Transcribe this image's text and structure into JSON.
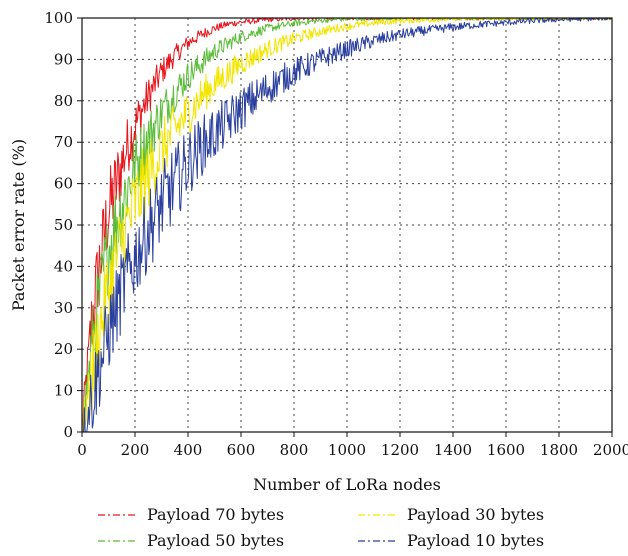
{
  "chart_data": {
    "type": "line",
    "title": "",
    "xlabel": "Number of LoRa nodes",
    "ylabel": "Packet error rate (%)",
    "xlim": [
      0,
      2000
    ],
    "ylim": [
      0,
      100
    ],
    "xticks": [
      0,
      200,
      400,
      600,
      800,
      1000,
      1200,
      1400,
      1600,
      1800,
      2000
    ],
    "yticks": [
      0,
      10,
      20,
      30,
      40,
      50,
      60,
      70,
      80,
      90,
      100
    ],
    "grid": true,
    "legend_position": "bottom",
    "series": [
      {
        "name": "Payload 70 bytes",
        "color": "#e8141b",
        "line_style": "dash-dot",
        "x": [
          0,
          20,
          40,
          60,
          80,
          100,
          130,
          160,
          200,
          250,
          300,
          350,
          400,
          450,
          500,
          550,
          600,
          700,
          800,
          900,
          1000,
          1200,
          1400,
          1600,
          1800,
          2000
        ],
        "y": [
          0,
          16,
          28,
          38,
          46,
          53,
          60,
          67,
          74,
          81,
          87,
          91,
          94,
          96,
          97.5,
          98.5,
          99,
          99.6,
          99.9,
          100,
          100,
          100,
          100,
          100,
          100,
          100
        ]
      },
      {
        "name": "Payload 50 bytes",
        "color": "#5cbd3a",
        "line_style": "dash-dot",
        "x": [
          0,
          20,
          40,
          60,
          80,
          100,
          130,
          160,
          200,
          250,
          300,
          350,
          400,
          450,
          500,
          600,
          700,
          800,
          900,
          1000,
          1200,
          1400,
          1600,
          1800,
          2000
        ],
        "y": [
          0,
          12,
          22,
          30,
          38,
          44,
          51,
          57,
          64,
          71,
          77,
          82,
          86,
          89,
          92,
          95.5,
          97.5,
          98.7,
          99.4,
          99.8,
          100,
          100,
          100,
          100,
          100
        ]
      },
      {
        "name": "Payload 30 bytes",
        "color": "#f2e600",
        "line_style": "dash-dot",
        "x": [
          0,
          20,
          40,
          60,
          80,
          100,
          130,
          160,
          200,
          250,
          300,
          350,
          400,
          450,
          500,
          600,
          700,
          800,
          900,
          1000,
          1100,
          1200,
          1400,
          1600,
          1800,
          2000
        ],
        "y": [
          0,
          8,
          15,
          22,
          29,
          35,
          42,
          48,
          55,
          62,
          68,
          73,
          77,
          81,
          84,
          89,
          92.5,
          95,
          96.8,
          98,
          98.8,
          99.3,
          99.8,
          100,
          100,
          100
        ]
      },
      {
        "name": "Payload 10 bytes",
        "color": "#2a3f9e",
        "line_style": "dash-dot",
        "x": [
          0,
          20,
          40,
          60,
          80,
          100,
          130,
          160,
          200,
          250,
          300,
          350,
          400,
          450,
          500,
          600,
          700,
          800,
          900,
          1000,
          1100,
          1200,
          1300,
          1400,
          1500,
          1600,
          1700,
          1800,
          1900,
          2000
        ],
        "y": [
          0,
          4,
          9,
          14,
          19,
          24,
          30,
          36,
          42,
          49,
          55,
          60,
          65,
          69,
          72,
          78,
          83,
          87,
          90,
          92.5,
          94.5,
          96,
          97,
          97.8,
          98.4,
          98.9,
          99.3,
          99.6,
          99.8,
          100
        ]
      }
    ]
  }
}
